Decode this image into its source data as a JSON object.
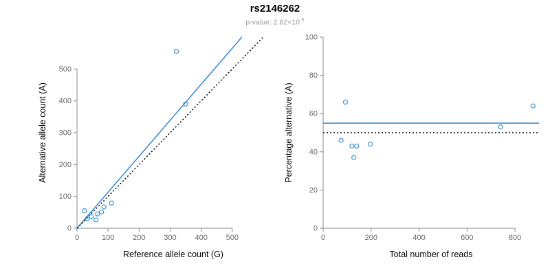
{
  "title": "rs2146262",
  "subtitle": {
    "prefix": "p-value: 2.82×10",
    "exponent": "-5"
  },
  "colors": {
    "accent_line": "#2f86d4",
    "point": "#3d93cf",
    "identity_line": "#000000",
    "axis_line": "#888888",
    "tick_text": "#666666",
    "axis_title": "#000000",
    "subtitle_text": "#999999"
  },
  "chart_data": [
    {
      "id": "left",
      "type": "scatter",
      "xlabel": "Reference allele count (G)",
      "ylabel": "Alternative allele count (A)",
      "xlim": [
        0,
        620
      ],
      "ylim": [
        0,
        600
      ],
      "xticks": [
        0,
        100,
        200,
        300,
        400,
        500
      ],
      "yticks": [
        0,
        100,
        200,
        300,
        400,
        500
      ],
      "grid": false,
      "points": [
        [
          24,
          55
        ],
        [
          33,
          30
        ],
        [
          46,
          37
        ],
        [
          61,
          26
        ],
        [
          66,
          45
        ],
        [
          79,
          51
        ],
        [
          87,
          67
        ],
        [
          111,
          79
        ],
        [
          320,
          555
        ],
        [
          350,
          390
        ]
      ],
      "lines": [
        {
          "kind": "ab",
          "slope": 1.13,
          "intercept": 0,
          "dash": "solid",
          "color": "accent",
          "name": "regression-line"
        },
        {
          "kind": "ab",
          "slope": 1.0,
          "intercept": 0,
          "dash": "dotted",
          "color": "black",
          "name": "identity-line"
        }
      ]
    },
    {
      "id": "right",
      "type": "scatter",
      "xlabel": "Total number of reads",
      "ylabel": "Percentage alternative (A)",
      "xlim": [
        0,
        900
      ],
      "ylim": [
        0,
        100
      ],
      "xticks": [
        0,
        200,
        400,
        600,
        800
      ],
      "yticks": [
        0,
        20,
        40,
        60,
        80,
        100
      ],
      "grid": false,
      "points": [
        [
          75,
          46
        ],
        [
          93,
          66
        ],
        [
          120,
          43
        ],
        [
          128,
          37
        ],
        [
          140,
          43
        ],
        [
          197,
          44
        ],
        [
          740,
          53
        ],
        [
          875,
          64
        ]
      ],
      "lines": [
        {
          "kind": "h",
          "y": 55,
          "dash": "solid",
          "color": "accent",
          "name": "mean-percentage-line"
        },
        {
          "kind": "h",
          "y": 50,
          "dash": "dotted",
          "color": "black",
          "name": "expected-percentage-line"
        }
      ]
    }
  ]
}
